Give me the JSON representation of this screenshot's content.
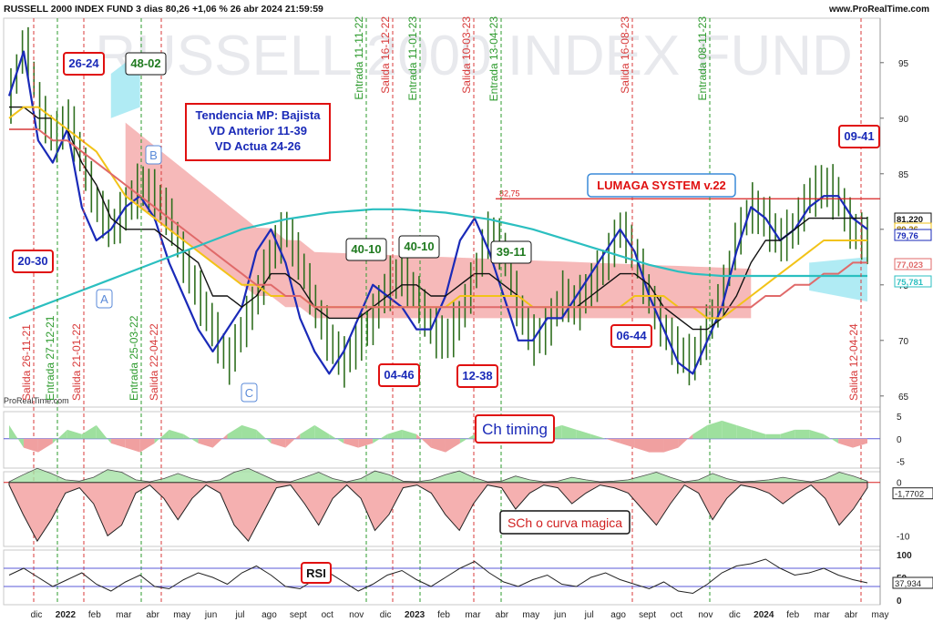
{
  "header": {
    "title": "RUSSELL 2000 INDEX FUND 3 dias 80,26 +1,06 % 26 abr 2024 21:59:59",
    "site": "www.ProRealTime.com"
  },
  "watermark": "RUSSELL 2000 INDEX FUND",
  "logo": "ProRealTime.com",
  "colors": {
    "price": "#2f6f1f",
    "fast_line": "#1a2ab8",
    "slow_line": "#111111",
    "yellow": "#f2c318",
    "red_ma": "#e06a6a",
    "cyan_ma": "#2bbfc0",
    "cloud_red": "#f08a8a",
    "cloud_cyan": "#8fe3f0",
    "entry": "#2e9b2e",
    "exit": "#d83a3a",
    "box_red": "#e01010",
    "box_blue": "#1a2ab8"
  },
  "annotations": {
    "tendencia": [
      "Tendencia MP: Bajista",
      "VD Anterior 11-39",
      "VD Actua 24-26"
    ],
    "lumaga": "LUMAGA SYSTEM v.22",
    "level": "82,75",
    "ch_timing": "Ch timing",
    "sch": "SCh o curva magica",
    "rsi": "RSI",
    "abc": [
      "A",
      "B",
      "C"
    ],
    "boxes": [
      {
        "t": "26-24",
        "style": "red"
      },
      {
        "t": "48-02",
        "style": "green"
      },
      {
        "t": "20-30",
        "style": "red"
      },
      {
        "t": "40-10",
        "style": "green"
      },
      {
        "t": "40-10",
        "style": "green"
      },
      {
        "t": "39-11",
        "style": "green"
      },
      {
        "t": "04-46",
        "style": "red"
      },
      {
        "t": "12-38",
        "style": "red"
      },
      {
        "t": "06-44",
        "style": "red"
      },
      {
        "t": "09-41",
        "style": "red"
      }
    ]
  },
  "signals": [
    {
      "label": "Salida 26-11-21",
      "type": "exit"
    },
    {
      "label": "Entrada 27-12-21",
      "type": "entry"
    },
    {
      "label": "Salida 21-01-22",
      "type": "exit"
    },
    {
      "label": "Entrada 25-03-22",
      "type": "entry"
    },
    {
      "label": "Salida 22-04-22",
      "type": "exit"
    },
    {
      "label": "Entrada 11-11-22",
      "type": "entry"
    },
    {
      "label": "Salida 16-12-22",
      "type": "exit"
    },
    {
      "label": "Entrada 11-01-23",
      "type": "entry"
    },
    {
      "label": "Salida 10-03-23",
      "type": "exit"
    },
    {
      "label": "Entrada 13-04-23",
      "type": "entry"
    },
    {
      "label": "Salida 16-08-23",
      "type": "exit"
    },
    {
      "label": "Entrada 08-11-23",
      "type": "entry"
    },
    {
      "label": "Salida 12-04-24",
      "type": "exit"
    }
  ],
  "chart_data": [
    {
      "type": "line",
      "panel": "price",
      "x_labels": [
        "dic",
        "2022",
        "feb",
        "mar",
        "abr",
        "may",
        "jun",
        "jul",
        "ago",
        "sept",
        "oct",
        "nov",
        "dic",
        "2023",
        "feb",
        "mar",
        "abr",
        "may",
        "jun",
        "jul",
        "ago",
        "sept",
        "oct",
        "nov",
        "dic",
        "2024",
        "feb",
        "mar",
        "abr",
        "may"
      ],
      "y_ticks": [
        65,
        70,
        75,
        80,
        85,
        90,
        95
      ],
      "ylim": [
        64,
        99
      ],
      "price_labels": [
        "81,220",
        "80,26",
        "79,76",
        "77,023",
        "75,781"
      ],
      "price_close_approx": [
        92,
        97,
        91,
        88,
        90,
        86,
        82,
        80,
        82,
        84,
        83,
        81,
        77,
        74,
        71,
        68,
        71,
        74,
        78,
        80,
        77,
        73,
        70,
        68,
        70,
        72,
        75,
        76,
        74,
        71,
        70,
        72,
        76,
        80,
        78,
        73,
        70,
        71,
        74,
        73,
        75,
        77,
        80,
        78,
        74,
        71,
        69,
        68,
        71,
        74,
        79,
        82,
        81,
        79,
        80,
        83,
        84,
        83,
        80,
        79
      ],
      "series": [
        {
          "name": "",
          "values": [
            92,
            96,
            88,
            86,
            89,
            82,
            79,
            80,
            82,
            83,
            81,
            77,
            74,
            71,
            69,
            71,
            73,
            78,
            80,
            77,
            72,
            69,
            67,
            69,
            72,
            75,
            74,
            73,
            71,
            71,
            74,
            79,
            81,
            78,
            74,
            70,
            70,
            72,
            72,
            74,
            76,
            78,
            80,
            78,
            74,
            71,
            68,
            67,
            70,
            73,
            78,
            82,
            81,
            79,
            80,
            82,
            83,
            83,
            81,
            80
          ]
        },
        {
          "name": "",
          "values": [
            91,
            91,
            90,
            90,
            89,
            86,
            84,
            81,
            80,
            80,
            80,
            79,
            78,
            77,
            74,
            74,
            73,
            74,
            76,
            76,
            75,
            73,
            72,
            72,
            72,
            73,
            74,
            75,
            75,
            74,
            74,
            75,
            76,
            76,
            75,
            74,
            73,
            73,
            73,
            73,
            74,
            75,
            76,
            76,
            75,
            73,
            72,
            71,
            71,
            72,
            74,
            77,
            79,
            79,
            80,
            81,
            81,
            81,
            81,
            81
          ]
        },
        {
          "name": "",
          "values": [
            90,
            91,
            91,
            90,
            89,
            88,
            87,
            85,
            83,
            82,
            81,
            80,
            79,
            78,
            77,
            76,
            75,
            75,
            74,
            74,
            74,
            73,
            73,
            73,
            73,
            73,
            73,
            73,
            73,
            73,
            73,
            74,
            74,
            74,
            74,
            74,
            73,
            73,
            73,
            73,
            73,
            73,
            73,
            74,
            74,
            74,
            73,
            73,
            72,
            72,
            73,
            74,
            75,
            76,
            77,
            78,
            79,
            79,
            79,
            79
          ]
        },
        {
          "name": "",
          "values": [
            89,
            89,
            89,
            88,
            88,
            87,
            86,
            85,
            84,
            83,
            82,
            81,
            80,
            79,
            78,
            77,
            76,
            75,
            75,
            74,
            74,
            73,
            73,
            73,
            73,
            73,
            73,
            73,
            73,
            73,
            73,
            73,
            73,
            73,
            73,
            73,
            73,
            73,
            73,
            73,
            73,
            73,
            73,
            73,
            73,
            73,
            73,
            73,
            73,
            73,
            73,
            73,
            74,
            74,
            75,
            75,
            76,
            76,
            77,
            77
          ]
        },
        {
          "name": "",
          "values": [
            72,
            72.5,
            73,
            73.5,
            74,
            74.5,
            75,
            75.5,
            76,
            76.5,
            77,
            77.5,
            78,
            78.5,
            79,
            79.5,
            80,
            80.3,
            80.6,
            80.9,
            81.1,
            81.3,
            81.5,
            81.6,
            81.7,
            81.8,
            81.8,
            81.8,
            81.7,
            81.6,
            81.5,
            81.3,
            81.1,
            80.9,
            80.6,
            80.3,
            80,
            79.6,
            79.2,
            78.8,
            78.4,
            78,
            77.6,
            77.2,
            76.8,
            76.5,
            76.2,
            76,
            75.9,
            75.8,
            75.8,
            75.8,
            75.8,
            75.8,
            75.8,
            75.8,
            75.8,
            75.8,
            75.8,
            75.8
          ]
        }
      ]
    },
    {
      "type": "area",
      "panel": "Ch timing",
      "y_ticks": [
        5,
        0,
        -5
      ],
      "ylim": [
        -6.5,
        6
      ],
      "values": [
        3,
        -2,
        -3,
        -1,
        2,
        1,
        3,
        -1,
        -2,
        -3,
        -1,
        2,
        1,
        -1,
        -2,
        1,
        3,
        2,
        -1,
        -2,
        1,
        3,
        1,
        -1,
        -2,
        -1,
        1,
        2,
        1,
        -2,
        -3,
        -1,
        1,
        3,
        3,
        2,
        1,
        2,
        3,
        2,
        1,
        0,
        -1,
        -2,
        -3,
        -3,
        -2,
        1,
        3,
        4,
        3,
        2,
        1,
        1,
        2,
        2,
        1,
        -1,
        -2,
        -1
      ]
    },
    {
      "type": "area",
      "panel": "SCh o curva magica",
      "y_ticks": [
        0,
        -10
      ],
      "price_label": "-1,7702",
      "ylim": [
        -12,
        2
      ],
      "values": [
        -0.5,
        -6,
        -11,
        -7,
        -2,
        -1,
        -4,
        -10,
        -8,
        -2,
        -0.5,
        -3,
        -7,
        -3,
        -0.5,
        -2,
        -8,
        -11,
        -6,
        -1,
        -0.5,
        -4,
        -8,
        -3,
        -0.5,
        -3,
        -9,
        -6,
        -1,
        -0.5,
        -2,
        -6,
        -9,
        -4,
        -0.5,
        -1,
        -5,
        -2,
        -0.5,
        -1,
        -4,
        -2,
        -0.5,
        -1,
        -2,
        -5,
        -8,
        -4,
        -0.5,
        -2,
        -7,
        -3,
        -0.5,
        -1,
        -2,
        -4,
        -2,
        -0.5,
        -3,
        -8,
        -5,
        -1
      ]
    },
    {
      "type": "line",
      "panel": "RSI",
      "y_ticks": [
        100,
        50,
        0
      ],
      "price_label": "37,934",
      "ylim": [
        -10,
        110
      ],
      "values": [
        55,
        70,
        50,
        30,
        45,
        60,
        35,
        20,
        40,
        55,
        30,
        25,
        45,
        60,
        50,
        35,
        60,
        75,
        55,
        30,
        25,
        45,
        60,
        40,
        20,
        35,
        55,
        65,
        45,
        30,
        50,
        70,
        85,
        60,
        40,
        30,
        45,
        55,
        35,
        30,
        50,
        60,
        45,
        35,
        25,
        40,
        20,
        15,
        35,
        60,
        75,
        80,
        90,
        70,
        55,
        60,
        70,
        55,
        45,
        38
      ]
    }
  ]
}
